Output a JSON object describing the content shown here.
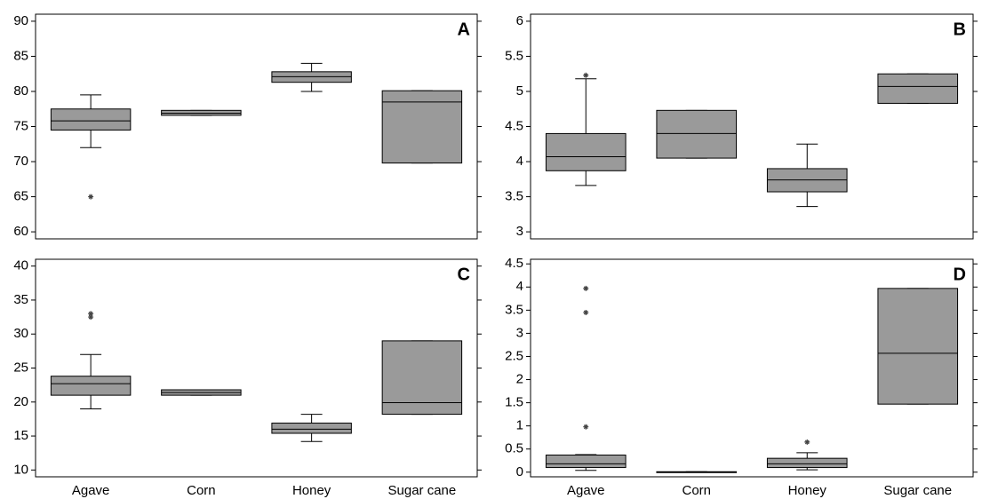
{
  "chart_data": [
    {
      "type": "box",
      "label": "A",
      "color": "#9a9a9a",
      "ylim": [
        59,
        91
      ],
      "yticks": [
        60,
        65,
        70,
        75,
        80,
        85,
        90
      ],
      "boxes": [
        {
          "min": 72,
          "q1": 74.5,
          "median": 75.8,
          "q3": 77.5,
          "max": 79.5,
          "outliers": [
            65
          ]
        },
        {
          "min": 76.6,
          "q1": 76.6,
          "median": 76.9,
          "q3": 77.3,
          "max": 77.3,
          "outliers": []
        },
        {
          "min": 80,
          "q1": 81.3,
          "median": 82.1,
          "q3": 82.8,
          "max": 84,
          "outliers": []
        },
        {
          "min": 69.8,
          "q1": 69.8,
          "median": 78.5,
          "q3": 80.1,
          "max": 80.1,
          "outliers": []
        }
      ]
    },
    {
      "type": "box",
      "label": "B",
      "color": "#9a9a9a",
      "ylim": [
        2.9,
        6.1
      ],
      "yticks": [
        3,
        3.5,
        4,
        4.5,
        5,
        5.5,
        6
      ],
      "boxes": [
        {
          "min": 3.66,
          "q1": 3.87,
          "median": 4.07,
          "q3": 4.4,
          "max": 5.18,
          "outliers": [
            5.23
          ]
        },
        {
          "min": 4.05,
          "q1": 4.05,
          "median": 4.4,
          "q3": 4.73,
          "max": 4.73,
          "outliers": []
        },
        {
          "min": 3.36,
          "q1": 3.57,
          "median": 3.74,
          "q3": 3.9,
          "max": 4.25,
          "outliers": []
        },
        {
          "min": 4.83,
          "q1": 4.83,
          "median": 5.07,
          "q3": 5.25,
          "max": 5.25,
          "outliers": []
        }
      ]
    },
    {
      "type": "box",
      "label": "C",
      "color": "#9a9a9a",
      "ylim": [
        9,
        41
      ],
      "yticks": [
        10,
        15,
        20,
        25,
        30,
        35,
        40
      ],
      "categories": [
        "Agave",
        "Corn",
        "Honey",
        "Sugar cane"
      ],
      "boxes": [
        {
          "min": 19,
          "q1": 21,
          "median": 22.7,
          "q3": 23.8,
          "max": 27,
          "outliers": [
            33,
            32.5
          ]
        },
        {
          "min": 21,
          "q1": 21,
          "median": 21.4,
          "q3": 21.8,
          "max": 21.8,
          "outliers": []
        },
        {
          "min": 14.2,
          "q1": 15.4,
          "median": 16,
          "q3": 16.9,
          "max": 18.2,
          "outliers": []
        },
        {
          "min": 18.2,
          "q1": 18.2,
          "median": 19.9,
          "q3": 29,
          "max": 29,
          "outliers": []
        }
      ]
    },
    {
      "type": "box",
      "label": "D",
      "color": "#9a9a9a",
      "ylim": [
        -0.1,
        4.6
      ],
      "yticks": [
        0,
        0.5,
        1,
        1.5,
        2,
        2.5,
        3,
        3.5,
        4,
        4.5
      ],
      "categories": [
        "Agave",
        "Corn",
        "Honey",
        "Sugar cane"
      ],
      "boxes": [
        {
          "min": 0.04,
          "q1": 0.1,
          "median": 0.18,
          "q3": 0.37,
          "max": 0.38,
          "outliers": [
            3.97,
            3.45,
            0.98
          ]
        },
        {
          "min": 0,
          "q1": 0,
          "median": 0,
          "q3": 0.01,
          "max": 0.01,
          "outliers": []
        },
        {
          "min": 0.05,
          "q1": 0.1,
          "median": 0.18,
          "q3": 0.3,
          "max": 0.42,
          "outliers": [
            0.65
          ]
        },
        {
          "min": 1.47,
          "q1": 1.47,
          "median": 2.57,
          "q3": 3.97,
          "max": 3.97,
          "outliers": []
        }
      ]
    }
  ]
}
